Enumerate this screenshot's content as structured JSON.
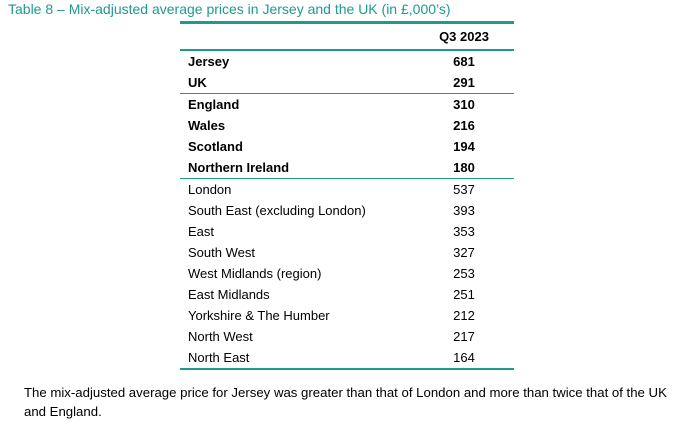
{
  "caption": "Table 8 – Mix-adjusted average prices in Jersey and the UK (in £,000’s)",
  "table": {
    "column_header": "Q3 2023",
    "rows": [
      {
        "label": "Jersey",
        "value": "681",
        "bold": true
      },
      {
        "label": "UK",
        "value": "291",
        "bold": true
      },
      {
        "label": "England",
        "value": "310",
        "bold": true
      },
      {
        "label": "Wales",
        "value": "216",
        "bold": true
      },
      {
        "label": "Scotland",
        "value": "194",
        "bold": true
      },
      {
        "label": "Northern Ireland",
        "value": "180",
        "bold": true
      },
      {
        "label": "London",
        "value": "537",
        "bold": false
      },
      {
        "label": "South East (excluding London)",
        "value": "393",
        "bold": false
      },
      {
        "label": "East",
        "value": "353",
        "bold": false
      },
      {
        "label": "South West",
        "value": "327",
        "bold": false
      },
      {
        "label": "West Midlands (region)",
        "value": "253",
        "bold": false
      },
      {
        "label": "East Midlands",
        "value": "251",
        "bold": false
      },
      {
        "label": "Yorkshire & The Humber",
        "value": "212",
        "bold": false
      },
      {
        "label": "North West",
        "value": "217",
        "bold": false
      },
      {
        "label": "North East",
        "value": "164",
        "bold": false
      }
    ]
  },
  "note": "The mix-adjusted average price for Jersey was greater than that of London and more than twice that of the UK and England.",
  "colors": {
    "accent": "#1f9a8c"
  }
}
